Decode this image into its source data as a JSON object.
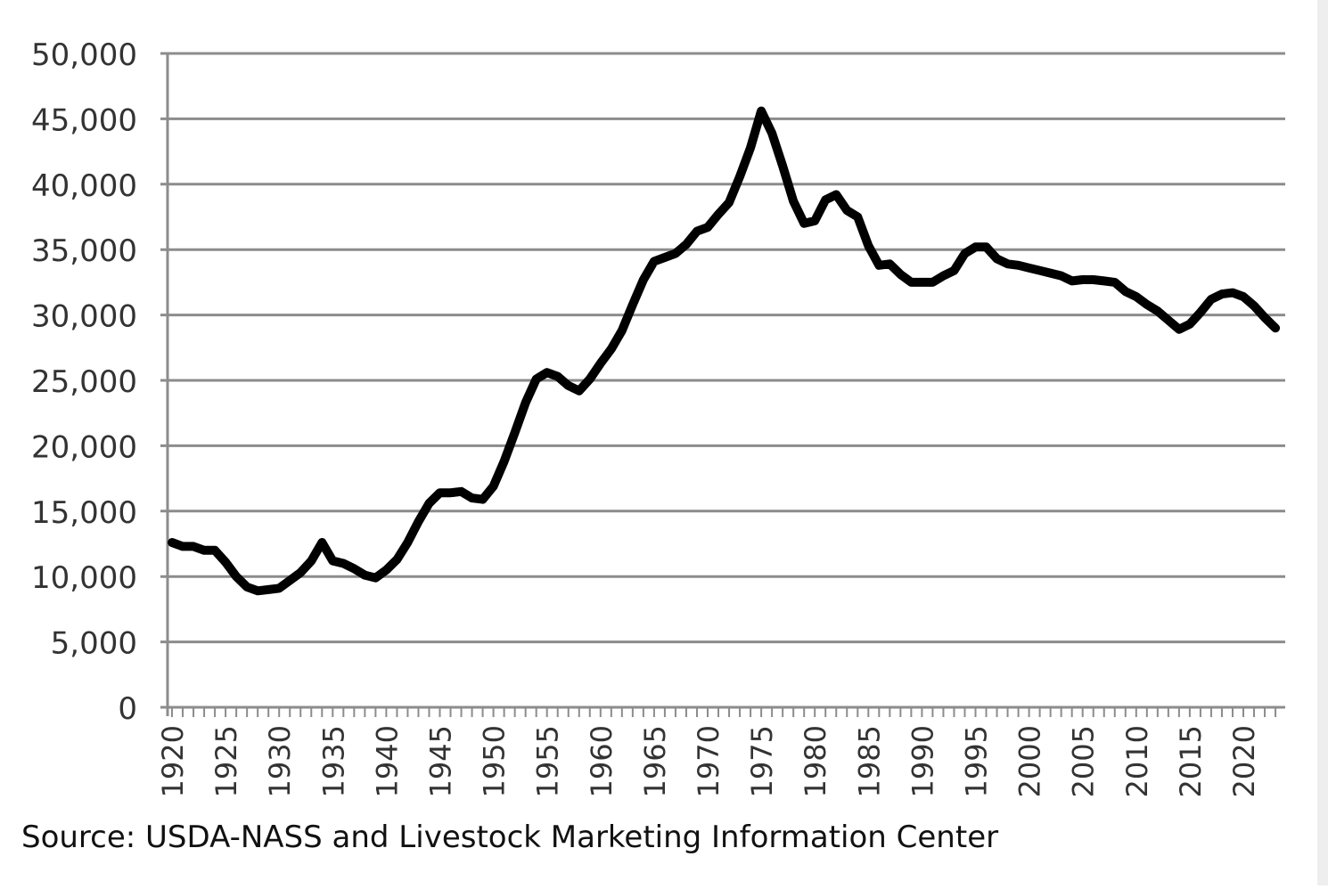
{
  "chart_data": {
    "type": "line",
    "title": "",
    "xlabel": "",
    "ylabel": "",
    "xlim": [
      1920,
      2023
    ],
    "ylim": [
      0,
      50000
    ],
    "grid": true,
    "legend": "none",
    "y_ticks": [
      "0",
      "5,000",
      "10,000",
      "15,000",
      "20,000",
      "25,000",
      "30,000",
      "35,000",
      "40,000",
      "45,000",
      "50,000"
    ],
    "y_tick_values": [
      0,
      5000,
      10000,
      15000,
      20000,
      25000,
      30000,
      35000,
      40000,
      45000,
      50000
    ],
    "x_ticks": [
      "1920",
      "1925",
      "1930",
      "1935",
      "1940",
      "1945",
      "1950",
      "1955",
      "1960",
      "1965",
      "1970",
      "1975",
      "1980",
      "1985",
      "1990",
      "1995",
      "2000",
      "2005",
      "2010",
      "2015",
      "2020"
    ],
    "x_tick_values": [
      1920,
      1925,
      1930,
      1935,
      1940,
      1945,
      1950,
      1955,
      1960,
      1965,
      1970,
      1975,
      1980,
      1985,
      1990,
      1995,
      2000,
      2005,
      2010,
      2015,
      2020
    ],
    "series": [
      {
        "color": "#000000",
        "x": [
          1920,
          1921,
          1922,
          1923,
          1924,
          1925,
          1926,
          1927,
          1928,
          1929,
          1930,
          1931,
          1932,
          1933,
          1934,
          1935,
          1936,
          1937,
          1938,
          1939,
          1940,
          1941,
          1942,
          1943,
          1944,
          1945,
          1946,
          1947,
          1948,
          1949,
          1950,
          1951,
          1952,
          1953,
          1954,
          1955,
          1956,
          1957,
          1958,
          1959,
          1960,
          1961,
          1962,
          1963,
          1964,
          1965,
          1966,
          1967,
          1968,
          1969,
          1970,
          1971,
          1972,
          1973,
          1974,
          1975,
          1976,
          1977,
          1978,
          1979,
          1980,
          1981,
          1982,
          1983,
          1984,
          1985,
          1986,
          1987,
          1988,
          1989,
          1990,
          1991,
          1992,
          1993,
          1994,
          1995,
          1996,
          1997,
          1998,
          1999,
          2000,
          2001,
          2002,
          2003,
          2004,
          2005,
          2006,
          2007,
          2008,
          2009,
          2010,
          2011,
          2012,
          2013,
          2014,
          2015,
          2016,
          2017,
          2018,
          2019,
          2020,
          2021,
          2022,
          2023
        ],
        "values": [
          12600,
          12300,
          12300,
          12000,
          12000,
          11100,
          10000,
          9200,
          8900,
          9000,
          9100,
          9700,
          10300,
          11200,
          12600,
          11200,
          11000,
          10600,
          10100,
          9900,
          10500,
          11300,
          12600,
          14200,
          15600,
          16400,
          16400,
          16500,
          16000,
          15900,
          16900,
          18800,
          21000,
          23300,
          25100,
          25600,
          25300,
          24600,
          24200,
          25100,
          26300,
          27400,
          28800,
          30800,
          32700,
          34100,
          34400,
          34700,
          35400,
          36400,
          36700,
          37700,
          38600,
          40600,
          42800,
          45600,
          43900,
          41400,
          38700,
          37000,
          37200,
          38800,
          39200,
          38000,
          37500,
          35300,
          33800,
          33900,
          33100,
          32500,
          32500,
          32500,
          33000,
          33400,
          34700,
          35200,
          35200,
          34300,
          33900,
          33800,
          33600,
          33400,
          33200,
          33000,
          32600,
          32700,
          32700,
          32600,
          32500,
          31800,
          31400,
          30800,
          30300,
          29600,
          28900,
          29300,
          30200,
          31200,
          31600,
          31700,
          31400,
          30700,
          29800,
          29000
        ]
      }
    ]
  },
  "source_note": "Source: USDA-NASS and Livestock Marketing Information Center"
}
